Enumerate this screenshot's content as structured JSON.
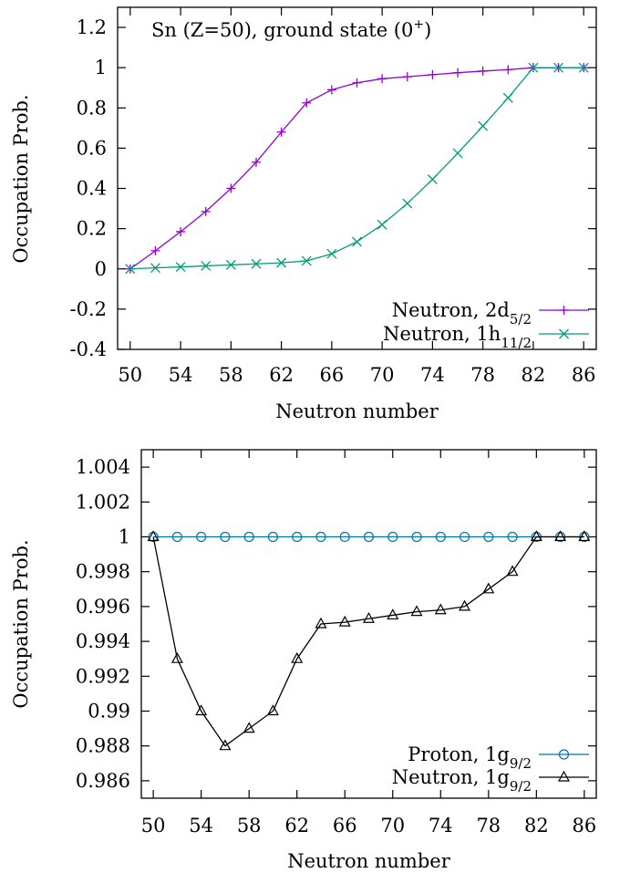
{
  "chart_data": [
    {
      "type": "line",
      "title": "Sn (Z=50), ground state (0⁺)",
      "title_parts": {
        "main": "Sn (Z=50), ground state (0",
        "sup": "+",
        "close": ")"
      },
      "xlabel": "Neutron number",
      "ylabel": "Occupation Prob.",
      "xlim": [
        49,
        87
      ],
      "ylim": [
        -0.4,
        1.3
      ],
      "xticks": [
        50,
        54,
        58,
        62,
        66,
        70,
        74,
        78,
        82,
        86
      ],
      "yticks": [
        1.2,
        1,
        0.8,
        0.6,
        0.4,
        0.2,
        0,
        -0.2,
        -0.4
      ],
      "ytick_labels": [
        "1.2",
        "1",
        "0.8",
        "0.6",
        "0.4",
        "0.2",
        "0",
        "-0.2",
        "-0.4"
      ],
      "grid": false,
      "legend_position": "bottom-right",
      "series": [
        {
          "name": "Neutron, 2d5/2",
          "label_main": "Neutron, 2d",
          "label_sub": "5/2",
          "color": "#9400d3",
          "marker": "plus",
          "x": [
            50,
            52,
            54,
            56,
            58,
            60,
            62,
            64,
            66,
            68,
            70,
            72,
            74,
            76,
            78,
            80,
            82,
            84,
            86
          ],
          "y": [
            0.0,
            0.09,
            0.185,
            0.285,
            0.4,
            0.53,
            0.68,
            0.825,
            0.89,
            0.925,
            0.945,
            0.955,
            0.965,
            0.975,
            0.983,
            0.99,
            1.0,
            1.0,
            1.0
          ]
        },
        {
          "name": "Neutron, 1h11/2",
          "label_main": "Neutron, 1h",
          "label_sub": "11/2",
          "color": "#009e73",
          "marker": "cross",
          "x": [
            50,
            52,
            54,
            56,
            58,
            60,
            62,
            64,
            66,
            68,
            70,
            72,
            74,
            76,
            78,
            80,
            82,
            84,
            86
          ],
          "y": [
            0.0,
            0.005,
            0.01,
            0.015,
            0.02,
            0.025,
            0.03,
            0.04,
            0.075,
            0.135,
            0.22,
            0.325,
            0.445,
            0.575,
            0.71,
            0.85,
            1.0,
            1.0,
            1.0
          ]
        }
      ]
    },
    {
      "type": "line",
      "title": "",
      "xlabel": "Neutron number",
      "ylabel": "Occupation Prob.",
      "xlim": [
        49,
        87
      ],
      "ylim": [
        0.985,
        1.005
      ],
      "xticks": [
        50,
        54,
        58,
        62,
        66,
        70,
        74,
        78,
        82,
        86
      ],
      "yticks": [
        1.004,
        1.002,
        1,
        0.998,
        0.996,
        0.994,
        0.992,
        0.99,
        0.988,
        0.986
      ],
      "ytick_labels": [
        "1.004",
        "1.002",
        "1",
        "0.998",
        "0.996",
        "0.994",
        "0.992",
        "0.99",
        "0.988",
        "0.986"
      ],
      "grid": false,
      "legend_position": "bottom-right",
      "series": [
        {
          "name": "Proton, 1g9/2",
          "label_main": "Proton, 1g",
          "label_sub": "9/2",
          "color": "#0072b2",
          "marker": "circle",
          "x": [
            50,
            52,
            54,
            56,
            58,
            60,
            62,
            64,
            66,
            68,
            70,
            72,
            74,
            76,
            78,
            80,
            82,
            84,
            86
          ],
          "y": [
            1,
            1,
            1,
            1,
            1,
            1,
            1,
            1,
            1,
            1,
            1,
            1,
            1,
            1,
            1,
            1,
            1,
            1,
            1
          ]
        },
        {
          "name": "Neutron, 1g9/2",
          "label_main": "Neutron, 1g",
          "label_sub": "9/2",
          "color": "#000000",
          "marker": "triangle",
          "x": [
            50,
            52,
            54,
            56,
            58,
            60,
            62,
            64,
            66,
            68,
            70,
            72,
            74,
            76,
            78,
            80,
            82,
            84,
            86
          ],
          "y": [
            1.0,
            0.993,
            0.99,
            0.988,
            0.989,
            0.99,
            0.993,
            0.995,
            0.9951,
            0.9953,
            0.9955,
            0.9957,
            0.9958,
            0.996,
            0.997,
            0.998,
            1.0,
            1.0,
            1.0
          ]
        }
      ]
    }
  ]
}
